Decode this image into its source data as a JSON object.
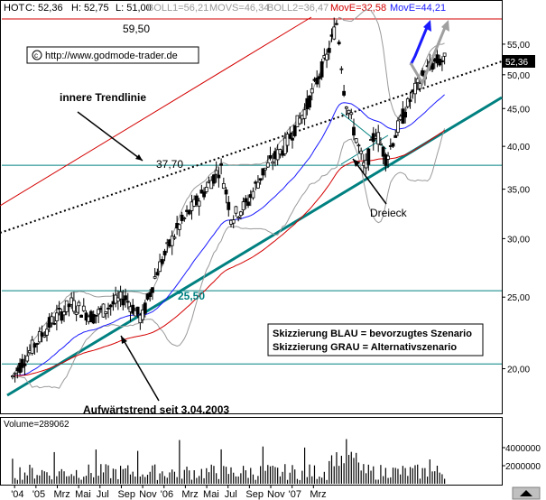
{
  "header": {
    "symbol": "HOT",
    "close": "C: 52,36",
    "high": "H: 52,75",
    "low": "L: 51,00",
    "boll1": "BOLL1=56,21",
    "movs": "MOVS=46,34",
    "boll2": "BOLL2=36,47",
    "move_red": "MovE=32,58",
    "move_blue": "MovE=44,21"
  },
  "colors": {
    "candle": "#000000",
    "boll": "#9a9a9a",
    "ma_blue": "#1a1aff",
    "ma_red": "#d40000",
    "trend": "#008080",
    "scenario_blue": "#1a1aff",
    "scenario_grey": "#a0a0a0",
    "last_price_bg": "#000000"
  },
  "annotations": {
    "high_value": "59,50",
    "level_3770": "37,70",
    "level_2550": "25,50",
    "url": "http://www.godmode-trader.de",
    "copyright_icon": "copyright-icon",
    "innere_trendlinie": "innere Trendlinie",
    "dreieck": "Dreieck",
    "aufwaertstrend": "Aufwärtstrend seit 3.04.2003",
    "legend_blue": "Skizzierung BLAU = bevorzugtes Szenario",
    "legend_grey": "Skizzierung GRAU = Alternativszenario",
    "last_price": "52,36",
    "volume_label": "Volume=289062"
  },
  "chart_data": {
    "type": "candlestick",
    "price_axis": {
      "scale": "log",
      "ylim": [
        17.5,
        60
      ],
      "ticks": [
        20,
        25,
        30,
        35,
        40,
        45,
        50,
        55
      ],
      "tick_labels": [
        "20,00",
        "25,00",
        "30,00",
        "35,00",
        "40,00",
        "45,00",
        "50,00",
        "55,00"
      ]
    },
    "time_axis": {
      "labels": [
        "'04",
        "'05",
        "Mrz",
        "Mai",
        "Jul",
        "Sep",
        "Nov",
        "'06",
        "Mrz",
        "Mai",
        "Jul",
        "Sep",
        "Nov",
        "'07",
        "Mrz"
      ]
    },
    "volume_axis": {
      "ylim": [
        0,
        6000000
      ],
      "ticks": [
        2000000,
        4000000
      ],
      "tick_labels": [
        "2000000",
        "4000000"
      ]
    },
    "key_points": [
      {
        "month": 0.5,
        "close": 19.5
      },
      {
        "month": 2,
        "close": 21
      },
      {
        "month": 4,
        "close": 23
      },
      {
        "month": 6,
        "close": 24.5
      },
      {
        "month": 8,
        "close": 23.5
      },
      {
        "month": 11,
        "close": 25
      },
      {
        "month": 12.6,
        "close": 23.3
      },
      {
        "month": 14,
        "close": 27
      },
      {
        "month": 16,
        "close": 31
      },
      {
        "month": 18,
        "close": 34
      },
      {
        "month": 20,
        "close": 37.5
      },
      {
        "month": 21,
        "close": 32
      },
      {
        "month": 22.5,
        "close": 33.5
      },
      {
        "month": 24,
        "close": 37
      },
      {
        "month": 26,
        "close": 40
      },
      {
        "month": 28,
        "close": 45
      },
      {
        "month": 30,
        "close": 53
      },
      {
        "month": 30.9,
        "close": 59
      },
      {
        "month": 31.6,
        "close": 47
      },
      {
        "month": 32.5,
        "close": 42
      },
      {
        "month": 33.5,
        "close": 37
      },
      {
        "month": 34.5,
        "close": 42
      },
      {
        "month": 35.5,
        "close": 38.5
      },
      {
        "month": 36.5,
        "close": 42
      },
      {
        "month": 38,
        "close": 47
      },
      {
        "month": 39,
        "close": 50
      },
      {
        "month": 40,
        "close": 52
      },
      {
        "month": 41,
        "close": 52.36
      }
    ],
    "indicators": [
      {
        "name": "BOLL1",
        "last": 56.21
      },
      {
        "name": "MOVS",
        "last": 46.34
      },
      {
        "name": "BOLL2",
        "last": 36.47
      },
      {
        "name": "MovE",
        "color": "red",
        "last": 32.58
      },
      {
        "name": "MovE",
        "color": "blue",
        "last": 44.21
      }
    ],
    "horizontal_levels": [
      {
        "label": "59,50",
        "value": 59.5,
        "color": "#d40000"
      },
      {
        "label": "37,70",
        "value": 37.7,
        "color": "#008080"
      },
      {
        "label": "25,50",
        "value": 25.5,
        "color": "#008080"
      },
      {
        "label": "",
        "value": 20.3,
        "color": "#008080"
      }
    ],
    "legend_placement": "bottom-right",
    "grid": false
  }
}
